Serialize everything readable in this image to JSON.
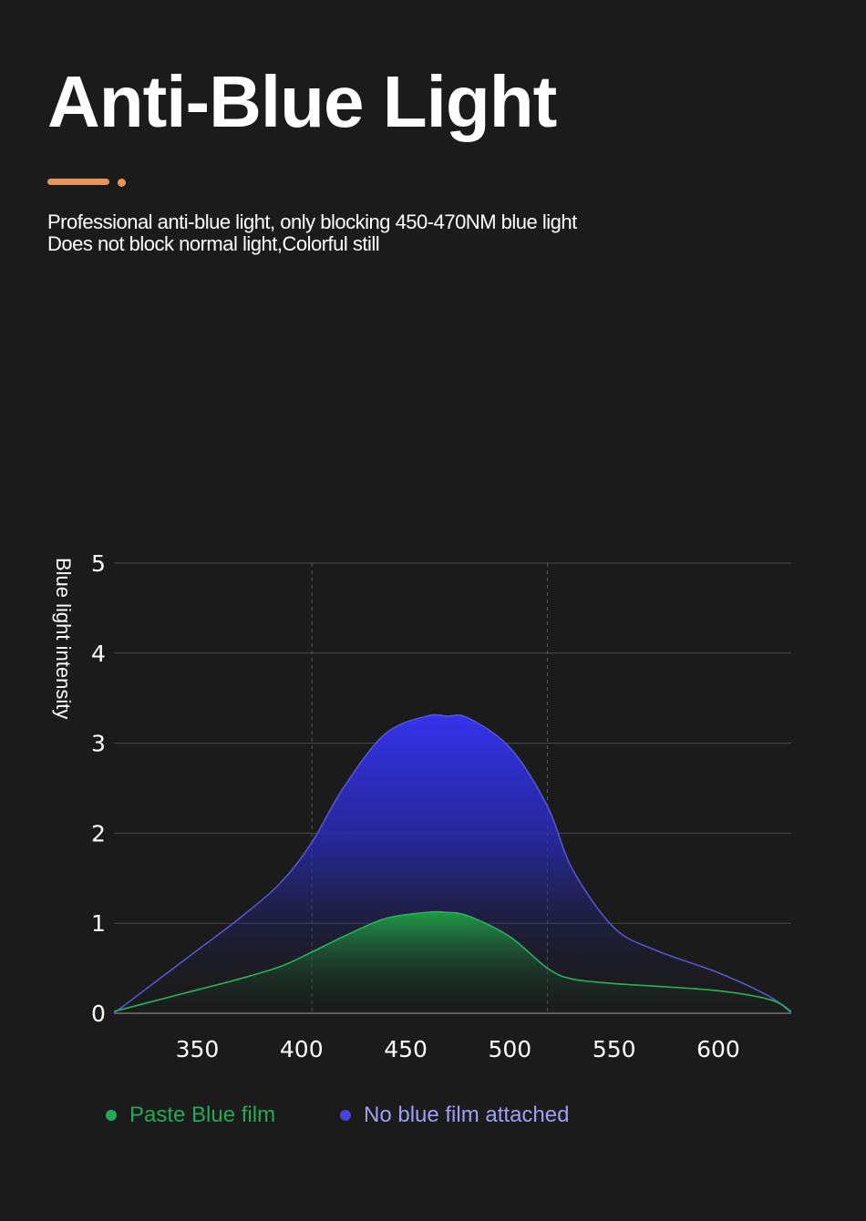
{
  "header": {
    "title": "Anti-Blue Light",
    "accent_color": "#e8955a",
    "subtitle_line1": "Professional anti-blue light, only blocking 450-470NM blue light",
    "subtitle_line2": "Does not block normal light,Colorful still"
  },
  "chart_data": {
    "type": "area",
    "title": "",
    "xlabel": "",
    "ylabel": "Blue light intensity",
    "xlim": [
      310,
      635
    ],
    "ylim": [
      0,
      5
    ],
    "x_ticks": [
      350,
      400,
      450,
      500,
      550,
      600
    ],
    "y_ticks": [
      0,
      1,
      2,
      3,
      4,
      5
    ],
    "dashed_vlines": [
      405,
      518
    ],
    "grid": "horizontal",
    "legend_position": "bottom",
    "series": [
      {
        "name": "No blue film attached",
        "color": "#4444dd",
        "x": [
          310,
          330,
          350,
          370,
          390,
          405,
          420,
          440,
          460,
          470,
          480,
          500,
          518,
          530,
          550,
          570,
          600,
          625,
          635
        ],
        "y": [
          0.0,
          0.35,
          0.7,
          1.05,
          1.45,
          1.9,
          2.5,
          3.1,
          3.3,
          3.3,
          3.28,
          2.95,
          2.3,
          1.6,
          0.95,
          0.7,
          0.45,
          0.18,
          0.0
        ]
      },
      {
        "name": "Paste Blue film",
        "color": "#22aa55",
        "x": [
          310,
          330,
          350,
          370,
          390,
          405,
          420,
          440,
          460,
          470,
          480,
          500,
          518,
          530,
          550,
          570,
          600,
          625,
          635
        ],
        "y": [
          0.02,
          0.14,
          0.26,
          0.38,
          0.52,
          0.68,
          0.85,
          1.05,
          1.12,
          1.12,
          1.08,
          0.85,
          0.5,
          0.38,
          0.33,
          0.3,
          0.25,
          0.15,
          0.02
        ]
      }
    ]
  }
}
